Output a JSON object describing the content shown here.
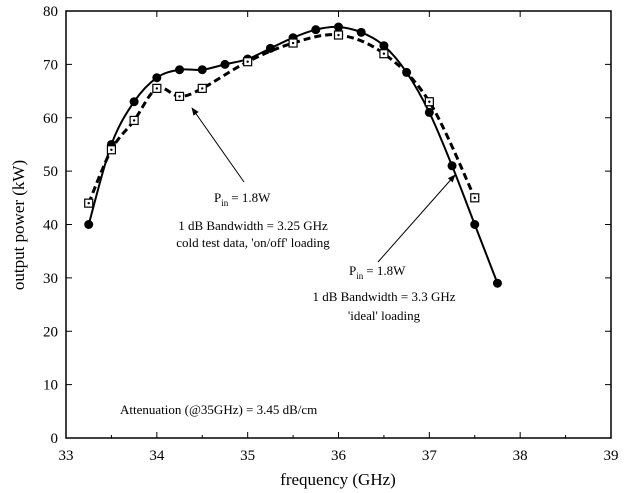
{
  "chart_data": {
    "type": "line",
    "xlabel": "frequency (GHz)",
    "ylabel": "output power (kW)",
    "xlim": [
      33,
      39
    ],
    "ylim": [
      0,
      80
    ],
    "x_ticks": [
      "33",
      "34",
      "35",
      "36",
      "37",
      "38",
      "39"
    ],
    "y_ticks": [
      "0",
      "10",
      "20",
      "30",
      "40",
      "50",
      "60",
      "70",
      "80"
    ],
    "grid": false,
    "series": [
      {
        "marker": "filled-circle",
        "line": "solid",
        "color": "#000000",
        "x": [
          33.25,
          33.5,
          33.75,
          34.0,
          34.25,
          34.5,
          34.75,
          35.0,
          35.25,
          35.5,
          35.75,
          36.0,
          36.25,
          36.5,
          36.75,
          37.0,
          37.25,
          37.5,
          37.75
        ],
        "y": [
          40,
          55,
          63,
          67.5,
          69,
          69,
          70,
          71,
          73,
          75,
          76.5,
          77,
          76,
          73.5,
          68.5,
          61,
          51,
          40,
          29
        ]
      },
      {
        "marker": "open-square",
        "line": "dashed",
        "color": "#000000",
        "x": [
          33.25,
          33.5,
          33.75,
          34.0,
          34.25,
          34.5,
          35.0,
          35.5,
          36.0,
          36.5,
          37.0,
          37.5
        ],
        "y": [
          44,
          54,
          59.5,
          65.5,
          64,
          65.5,
          70.5,
          74,
          75.5,
          72,
          63,
          45
        ]
      }
    ],
    "annotations": [
      {
        "lines": [
          "= 1.8W",
          "1 dB Bandwidth = 3.25 GHz",
          "cold test data, 'on/off' loading"
        ],
        "p_letter": "P",
        "p_sub": "in"
      },
      {
        "lines": [
          "= 1.8W",
          "1 dB Bandwidth = 3.3 GHz",
          "'ideal' loading"
        ],
        "p_letter": "P",
        "p_sub": "in"
      }
    ],
    "footnote": "Attenuation (@35GHz) = 3.45 dB/cm"
  }
}
